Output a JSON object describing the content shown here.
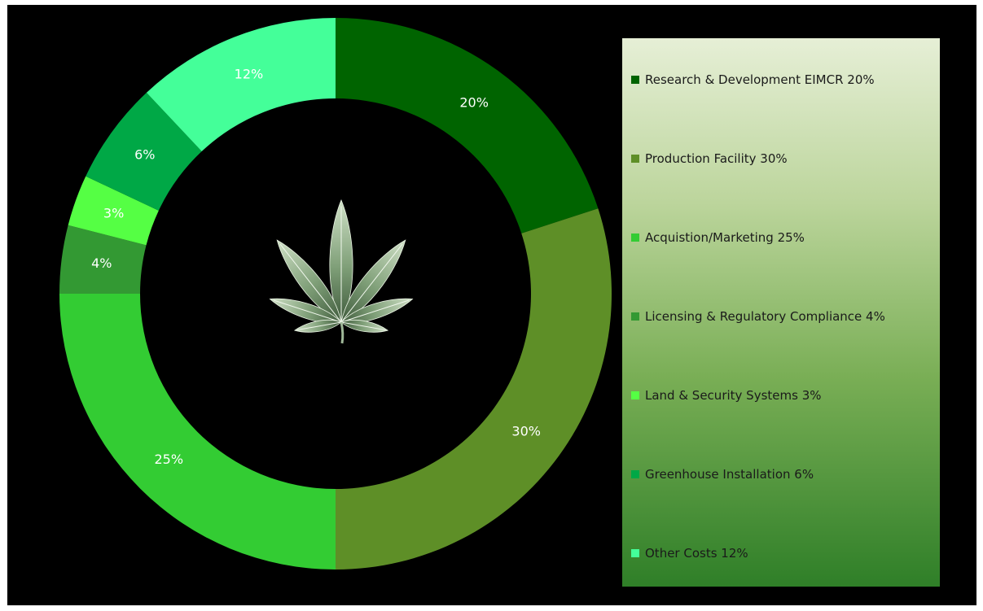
{
  "chart_data": {
    "type": "pie",
    "style": "donut",
    "title": "",
    "legend_position": "right",
    "slices": [
      {
        "name": "Research & Development EIMCR 20%",
        "value": 20,
        "label": "20%",
        "color": "#006400"
      },
      {
        "name": "Production Facility 30%",
        "value": 30,
        "label": "30%",
        "color": "#5e8f27"
      },
      {
        "name": "Acquistion/Marketing 25%",
        "value": 25,
        "label": "25%",
        "color": "#33cc33"
      },
      {
        "name": "Licensing & Regulatory Compliance 4%",
        "value": 4,
        "label": "4%",
        "color": "#339933"
      },
      {
        "name": "Land & Security Systems 3%",
        "value": 3,
        "label": "3%",
        "color": "#55ff44"
      },
      {
        "name": "Greenhouse Installation 6%",
        "value": 6,
        "label": "6%",
        "color": "#00a846"
      },
      {
        "name": "Other Costs 12%",
        "value": 12,
        "label": "12%",
        "color": "#44ff99"
      }
    ],
    "center_image": "cannabis-leaf-icon",
    "label_color": "#ffffff"
  }
}
